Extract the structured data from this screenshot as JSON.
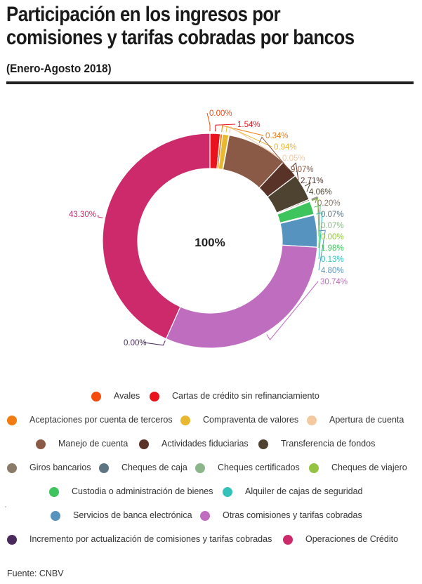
{
  "header": {
    "title": "Participación en los ingresos por comisiones y tarifas cobradas por bancos",
    "subtitle": "(Enero-Agosto 2018)"
  },
  "chart_data": {
    "type": "pie",
    "donut": true,
    "center_label": "100%",
    "legend_position": "bottom",
    "series": [
      {
        "name": "Avales",
        "value": 0.0,
        "label": "0.00%",
        "color": "#f44b0e"
      },
      {
        "name": "Cartas de crédito sin refinanciamiento",
        "value": 1.54,
        "label": "1.54%",
        "color": "#e8131d"
      },
      {
        "name": "Aceptaciones por cuenta de terceros",
        "value": 0.34,
        "label": "0.34%",
        "color": "#f07c12"
      },
      {
        "name": "Compraventa de valores",
        "value": 0.94,
        "label": "0.94%",
        "color": "#e8b830"
      },
      {
        "name": "Apertura de cuenta",
        "value": 0.05,
        "label": "0.05%",
        "color": "#f5c9a0"
      },
      {
        "name": "Manejo de cuenta",
        "value": 9.07,
        "label": "9.07%",
        "color": "#8b5a46"
      },
      {
        "name": "Actividades fiduciarias",
        "value": 2.71,
        "label": "2.71%",
        "color": "#5a3328"
      },
      {
        "name": "Transferencia de fondos",
        "value": 4.06,
        "label": "4.06%",
        "color": "#4d4330"
      },
      {
        "name": "Giros bancarios",
        "value": 0.2,
        "label": "0.20%",
        "color": "#8a7a68"
      },
      {
        "name": "Cheques de caja",
        "value": 0.07,
        "label": "0.07%",
        "color": "#5d7582"
      },
      {
        "name": "Cheques certificados",
        "value": 0.07,
        "label": "0.07%",
        "color": "#8db58a"
      },
      {
        "name": "Cheques de viajero",
        "value": 0.0,
        "label": "0.00%",
        "color": "#94c242"
      },
      {
        "name": "Custodia o administración de bienes",
        "value": 1.98,
        "label": "1.98%",
        "color": "#3ec45c"
      },
      {
        "name": "Alquiler de cajas de seguridad",
        "value": 0.13,
        "label": "0.13%",
        "color": "#33c2b8"
      },
      {
        "name": "Servicios de banca electrónica",
        "value": 4.8,
        "label": "4.80%",
        "color": "#5693bf"
      },
      {
        "name": "Otras comisiones y tarifas cobradas",
        "value": 30.74,
        "label": "30.74%",
        "color": "#bf6dbf"
      },
      {
        "name": "Incremento por actualización de comisiones y tarifas cobradas",
        "value": 0.0,
        "label": "0.00%",
        "color": "#4a2a5c"
      },
      {
        "name": "Operaciones de Crédito",
        "value": 43.3,
        "label": "43.30%",
        "color": "#cc2a6a"
      }
    ]
  },
  "legend_rows": [
    [
      0,
      1
    ],
    [
      2,
      3,
      4
    ],
    [
      5,
      6,
      7
    ],
    [
      8,
      9,
      10,
      11
    ],
    [
      12,
      13
    ],
    [
      14,
      15
    ],
    [
      16,
      17
    ]
  ],
  "footer": {
    "source": "Fuente: CNBV"
  }
}
